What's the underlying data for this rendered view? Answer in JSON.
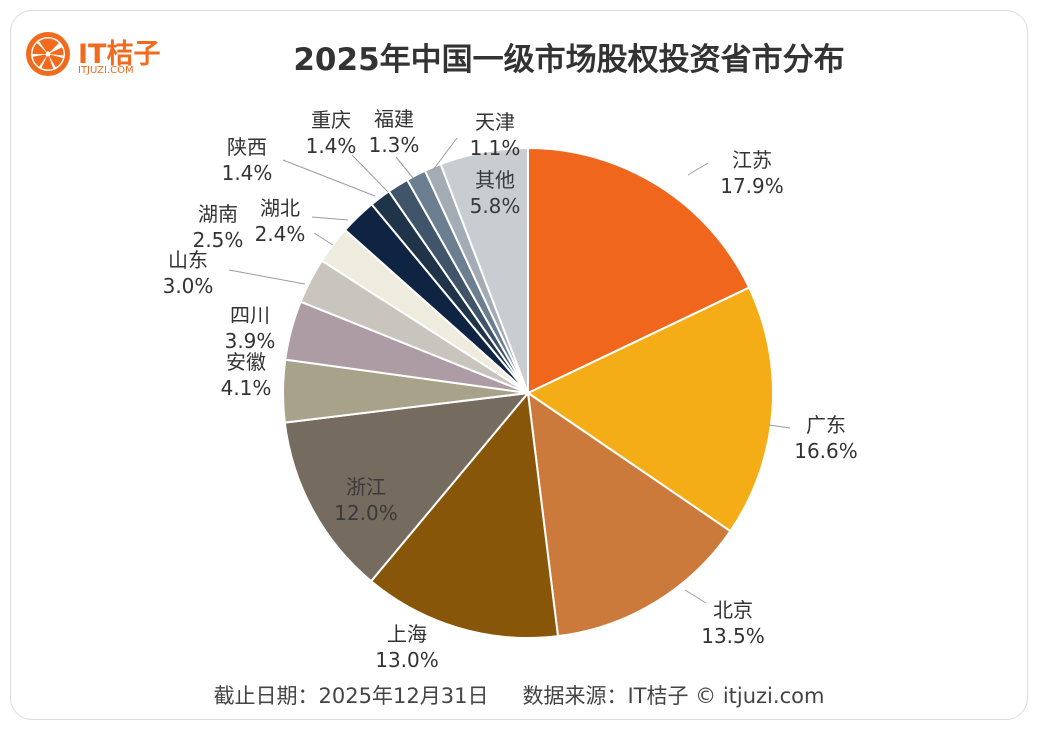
{
  "logo": {
    "name": "IT桔子",
    "domain": "ITJUZI.COM"
  },
  "colors": {
    "brand": "#f26a1b"
  },
  "footer": {
    "date": "截止日期：2025年12月31日",
    "source": "数据来源：IT桔子 © itjuzi.com"
  },
  "chart_data": {
    "type": "pie",
    "title": "2025年中国一级市场股权投资省市分布",
    "unit": "%",
    "slices": [
      {
        "label": "江苏",
        "value": 17.9,
        "value_label": "17.9%",
        "color": "#f0661c"
      },
      {
        "label": "广东",
        "value": 16.6,
        "value_label": "16.6%",
        "color": "#f5ad17"
      },
      {
        "label": "北京",
        "value": 13.5,
        "value_label": "13.5%",
        "color": "#cc7a3b"
      },
      {
        "label": "上海",
        "value": 13.0,
        "value_label": "13.0%",
        "color": "#875608"
      },
      {
        "label": "浙江",
        "value": 12.0,
        "value_label": "12.0%",
        "color": "#756b5f"
      },
      {
        "label": "安徽",
        "value": 4.1,
        "value_label": "4.1%",
        "color": "#a8a28b"
      },
      {
        "label": "四川",
        "value": 3.9,
        "value_label": "3.9%",
        "color": "#ad9ca3"
      },
      {
        "label": "山东",
        "value": 3.0,
        "value_label": "3.0%",
        "color": "#c9c4bd"
      },
      {
        "label": "湖南",
        "value": 2.5,
        "value_label": "2.5%",
        "color": "#eeebdf"
      },
      {
        "label": "湖北",
        "value": 2.4,
        "value_label": "2.4%",
        "color": "#0e2442"
      },
      {
        "label": "陕西",
        "value": 1.4,
        "value_label": "1.4%",
        "color": "#1f3449"
      },
      {
        "label": "重庆",
        "value": 1.4,
        "value_label": "1.4%",
        "color": "#40546a"
      },
      {
        "label": "福建",
        "value": 1.3,
        "value_label": "1.3%",
        "color": "#6b7f91"
      },
      {
        "label": "天津",
        "value": 1.1,
        "value_label": "1.1%",
        "color": "#a3acb4"
      },
      {
        "label": "其他",
        "value": 5.8,
        "value_label": "5.8%",
        "color": "#c8cdd1"
      }
    ]
  }
}
